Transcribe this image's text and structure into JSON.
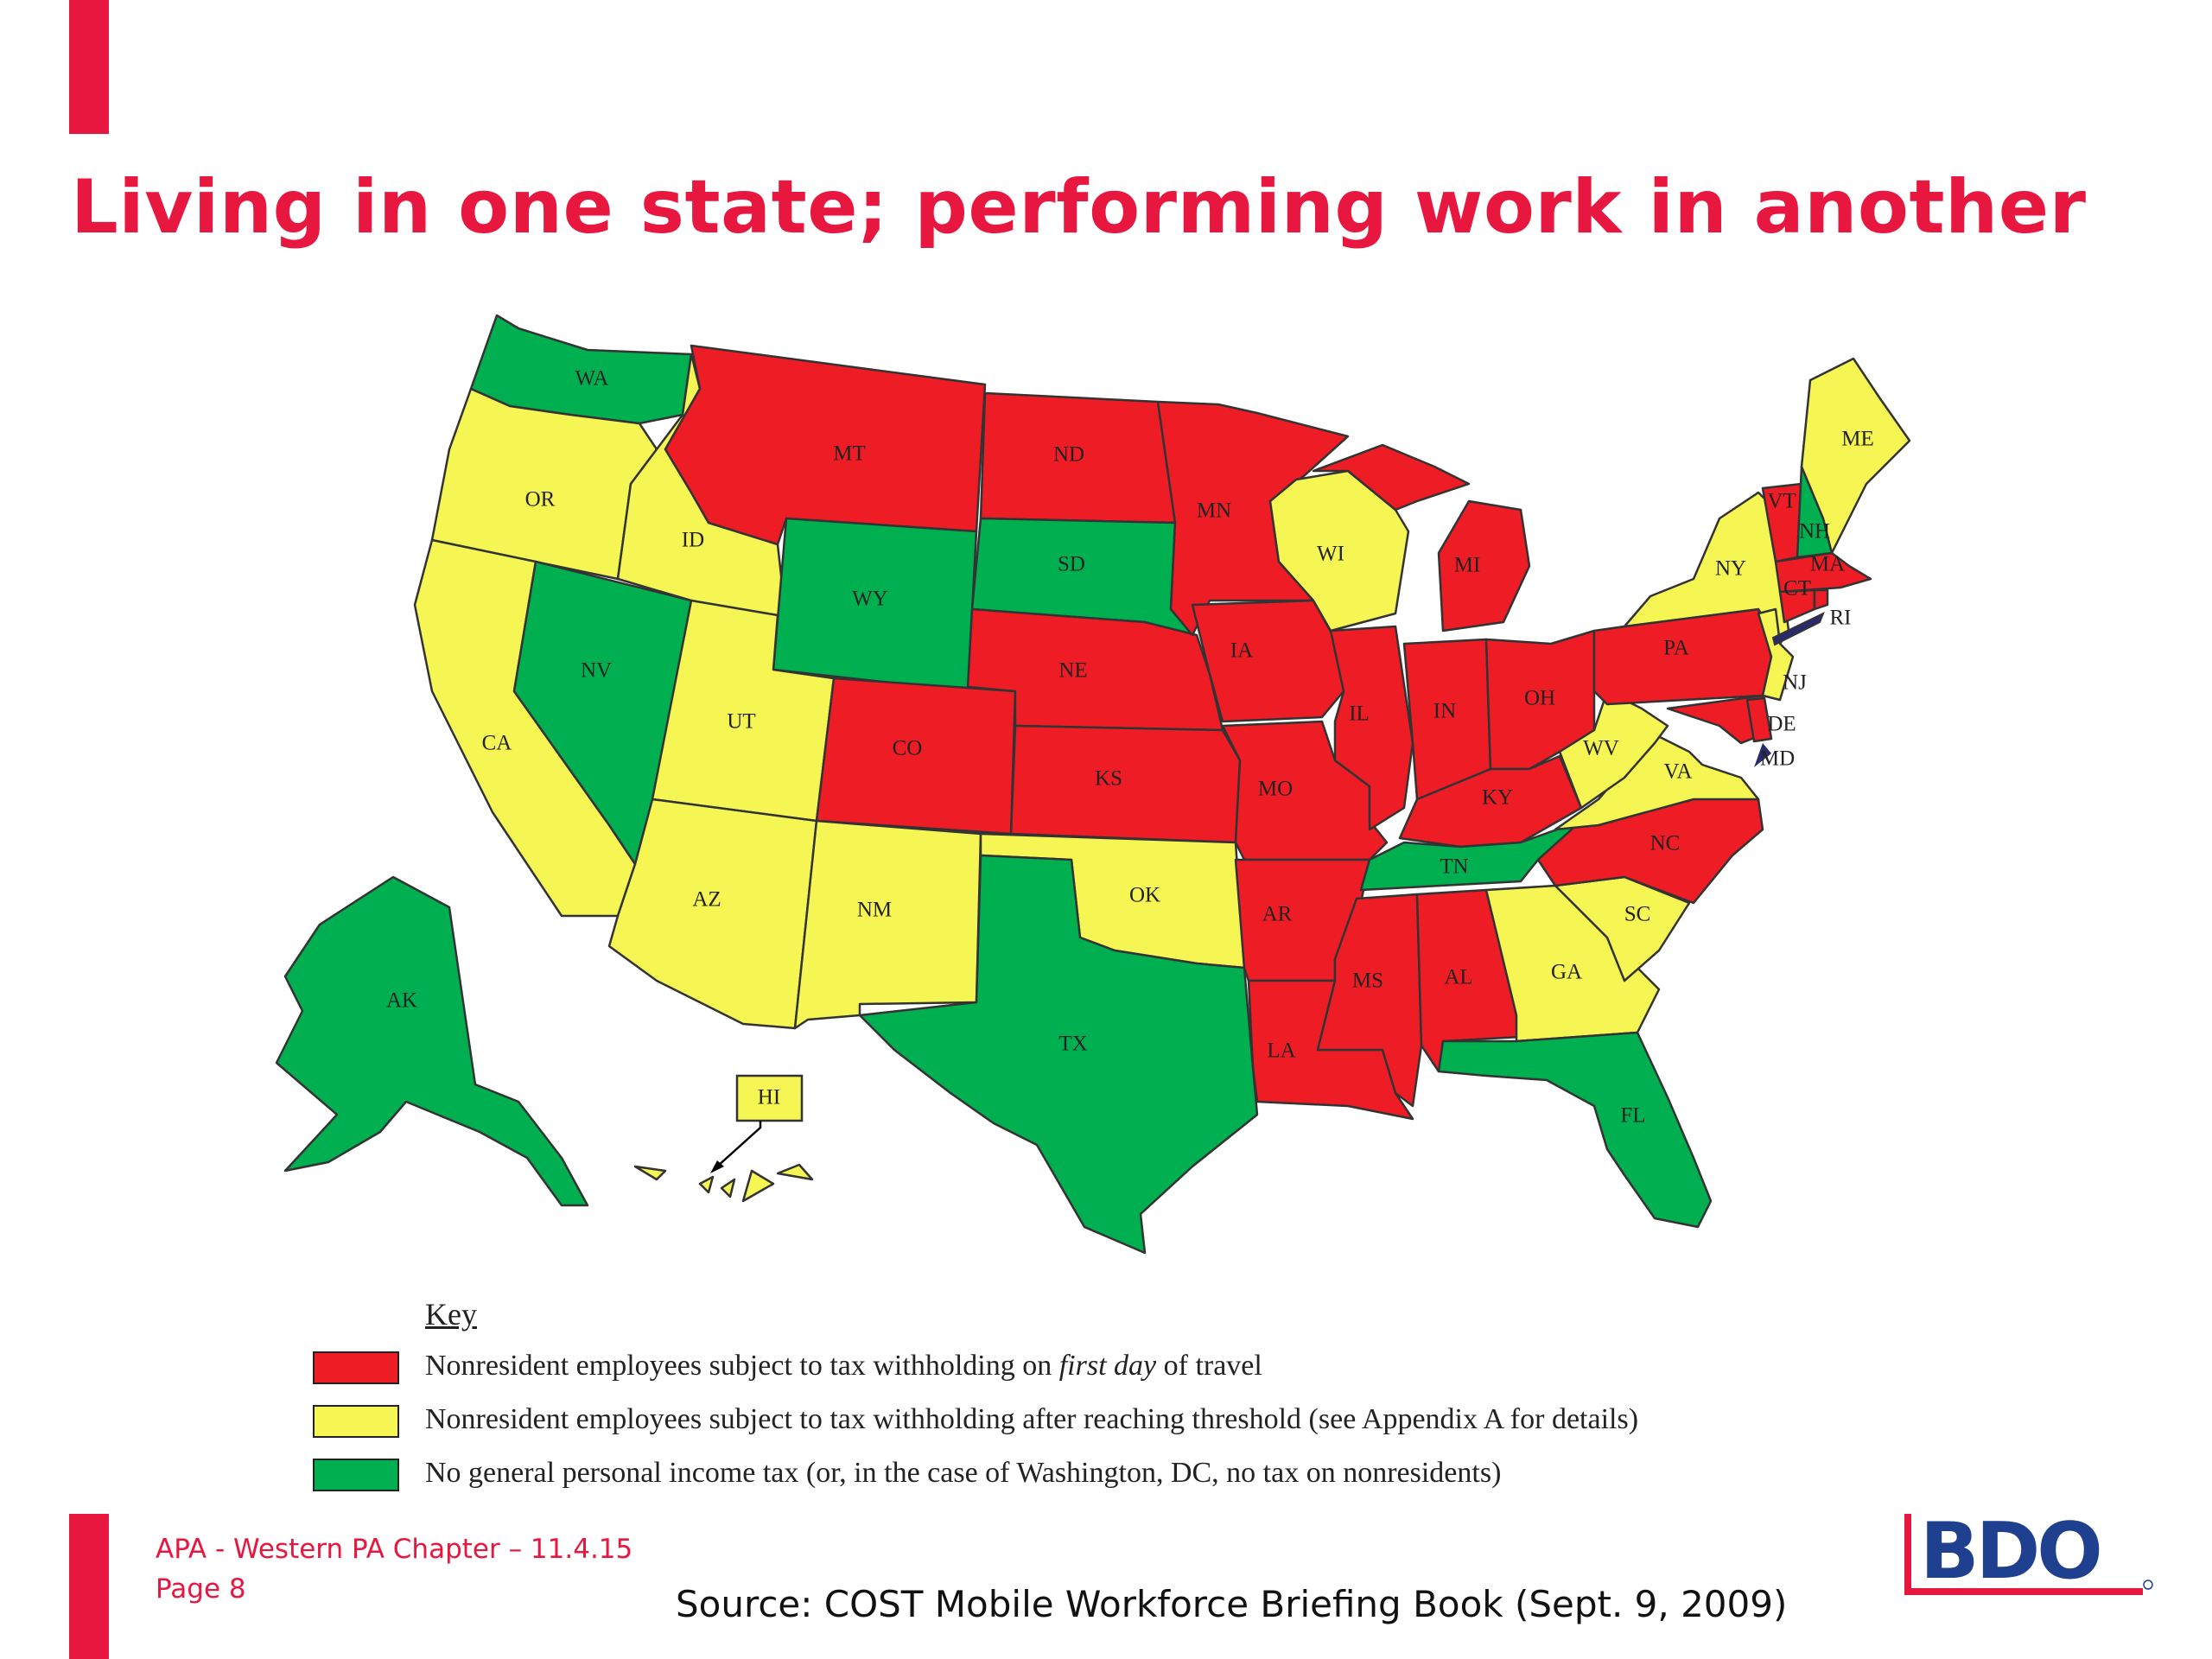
{
  "slide": {
    "title": "Living in one state; performing work in another",
    "footer_line1": "APA - Western PA Chapter – 11.4.15",
    "footer_line2": "Page 8",
    "source": "Source:  COST Mobile Workforce Briefing Book (Sept. 9, 2009)",
    "logo_text": "BDO"
  },
  "colors": {
    "accent": "#e8173f",
    "first_day": "#ee1c24",
    "threshold": "#f5f553",
    "no_tax": "#00b050",
    "dc": "#2a2a6e"
  },
  "map": {
    "states": [
      {
        "abbr": "WA",
        "category": "no_tax"
      },
      {
        "abbr": "OR",
        "category": "threshold"
      },
      {
        "abbr": "CA",
        "category": "threshold"
      },
      {
        "abbr": "NV",
        "category": "no_tax"
      },
      {
        "abbr": "ID",
        "category": "threshold"
      },
      {
        "abbr": "MT",
        "category": "first_day"
      },
      {
        "abbr": "WY",
        "category": "no_tax"
      },
      {
        "abbr": "UT",
        "category": "threshold"
      },
      {
        "abbr": "AZ",
        "category": "threshold"
      },
      {
        "abbr": "CO",
        "category": "first_day"
      },
      {
        "abbr": "NM",
        "category": "threshold"
      },
      {
        "abbr": "ND",
        "category": "first_day"
      },
      {
        "abbr": "SD",
        "category": "no_tax"
      },
      {
        "abbr": "NE",
        "category": "first_day"
      },
      {
        "abbr": "KS",
        "category": "first_day"
      },
      {
        "abbr": "OK",
        "category": "threshold"
      },
      {
        "abbr": "TX",
        "category": "no_tax"
      },
      {
        "abbr": "MN",
        "category": "first_day"
      },
      {
        "abbr": "IA",
        "category": "first_day"
      },
      {
        "abbr": "MO",
        "category": "first_day"
      },
      {
        "abbr": "AR",
        "category": "first_day"
      },
      {
        "abbr": "LA",
        "category": "first_day"
      },
      {
        "abbr": "WI",
        "category": "threshold"
      },
      {
        "abbr": "IL",
        "category": "first_day"
      },
      {
        "abbr": "MI",
        "category": "first_day"
      },
      {
        "abbr": "IN",
        "category": "first_day"
      },
      {
        "abbr": "OH",
        "category": "first_day"
      },
      {
        "abbr": "KY",
        "category": "first_day"
      },
      {
        "abbr": "TN",
        "category": "no_tax"
      },
      {
        "abbr": "MS",
        "category": "first_day"
      },
      {
        "abbr": "AL",
        "category": "first_day"
      },
      {
        "abbr": "GA",
        "category": "threshold"
      },
      {
        "abbr": "FL",
        "category": "no_tax"
      },
      {
        "abbr": "SC",
        "category": "threshold"
      },
      {
        "abbr": "NC",
        "category": "first_day"
      },
      {
        "abbr": "VA",
        "category": "threshold"
      },
      {
        "abbr": "WV",
        "category": "threshold"
      },
      {
        "abbr": "PA",
        "category": "first_day"
      },
      {
        "abbr": "NY",
        "category": "threshold"
      },
      {
        "abbr": "VT",
        "category": "first_day"
      },
      {
        "abbr": "NH",
        "category": "no_tax"
      },
      {
        "abbr": "ME",
        "category": "threshold"
      },
      {
        "abbr": "MA",
        "category": "first_day"
      },
      {
        "abbr": "CT",
        "category": "first_day"
      },
      {
        "abbr": "RI",
        "category": "first_day"
      },
      {
        "abbr": "NJ",
        "category": "threshold"
      },
      {
        "abbr": "DE",
        "category": "first_day"
      },
      {
        "abbr": "MD",
        "category": "first_day"
      },
      {
        "abbr": "AK",
        "category": "no_tax"
      },
      {
        "abbr": "HI",
        "category": "threshold"
      }
    ]
  },
  "key": {
    "title": "Key",
    "first_day_before": "Nonresident employees subject to tax withholding on ",
    "first_day_emphasis": "first day",
    "first_day_after": " of travel",
    "threshold": "Nonresident employees subject to tax withholding after reaching threshold (see Appendix A for details)",
    "no_tax": "No general personal income tax (or, in the case of Washington, DC, no tax on nonresidents)"
  }
}
